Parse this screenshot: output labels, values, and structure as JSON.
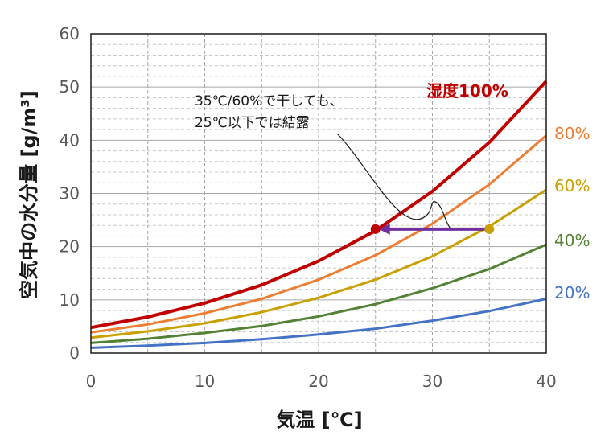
{
  "chart_data": {
    "type": "line",
    "xlabel": "気温 [℃]",
    "ylabel": "空気中の水分量 [g/m³]",
    "xlim": [
      0,
      40
    ],
    "ylim": [
      0,
      60
    ],
    "xticks": [
      0,
      10,
      20,
      30,
      40
    ],
    "yticks": [
      0,
      10,
      20,
      30,
      40,
      50,
      60
    ],
    "grid": true,
    "x": [
      0,
      5,
      10,
      15,
      20,
      25,
      30,
      35,
      40
    ],
    "series": [
      {
        "name": "湿度100%",
        "color": "#c00000",
        "bold": true,
        "values": [
          4.8,
          6.8,
          9.4,
          12.8,
          17.3,
          23.0,
          30.4,
          39.6,
          51.1
        ]
      },
      {
        "name": "80%",
        "color": "#ed7d31",
        "bold": false,
        "values": [
          3.9,
          5.4,
          7.5,
          10.2,
          13.8,
          18.4,
          24.3,
          31.7,
          40.9
        ]
      },
      {
        "name": "60%",
        "color": "#c9a000",
        "bold": false,
        "values": [
          2.9,
          4.1,
          5.6,
          7.7,
          10.4,
          13.8,
          18.2,
          23.8,
          30.7
        ]
      },
      {
        "name": "40%",
        "color": "#548235",
        "bold": false,
        "values": [
          1.9,
          2.7,
          3.8,
          5.1,
          6.9,
          9.2,
          12.2,
          15.8,
          20.4
        ]
      },
      {
        "name": "20%",
        "color": "#4472c4",
        "bold": false,
        "values": [
          1.0,
          1.4,
          1.9,
          2.6,
          3.5,
          4.6,
          6.1,
          7.9,
          10.2
        ]
      }
    ],
    "annotation": {
      "lines": [
        "35℃/60%で干しても、",
        "25℃以下では結露"
      ],
      "from": {
        "x": 35,
        "y": 23.3,
        "color": "#c9a000"
      },
      "to": {
        "x": 25,
        "y": 23.3,
        "color": "#c00000"
      },
      "arrow_color": "#7030a0"
    }
  }
}
